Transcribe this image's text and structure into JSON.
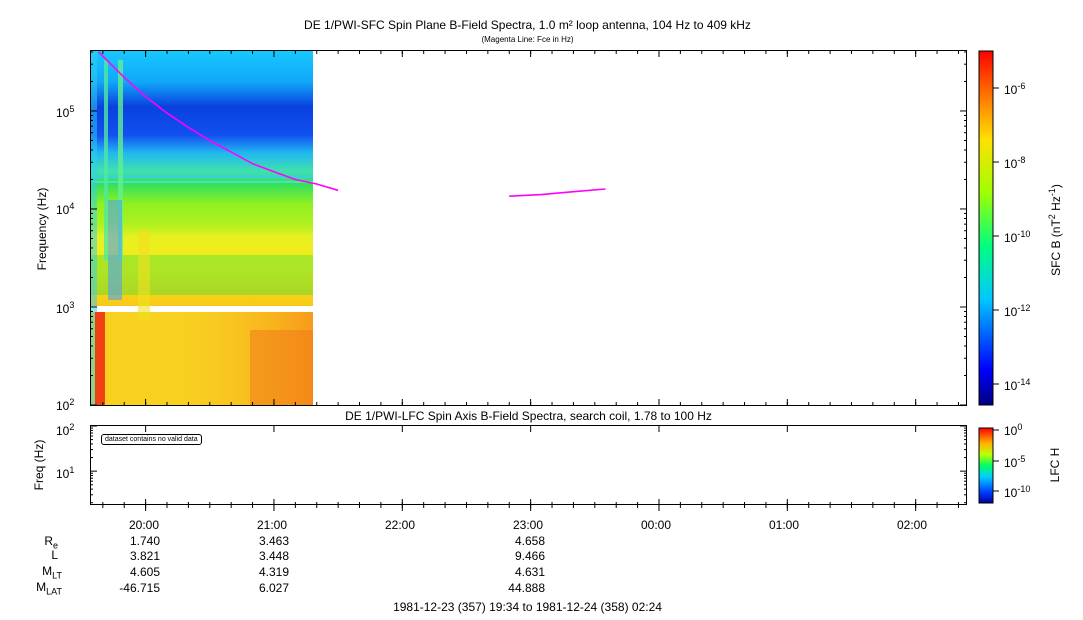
{
  "title": "DE 1/PWI-SFC  Spin Plane B-Field Spectra, 1.0 m² loop antenna, 104 Hz to 409 kHz",
  "subtitle": "(Magenta Line: Fce in Hz)",
  "lower_title": "DE 1/PWI-LFC  Spin Axis B-Field Spectra, search coil, 1.78 to 100 Hz",
  "no_data_message": "dataset contains no valid data",
  "time_range_label": "1981-12-23 (357) 19:34 to 1981-12-24 (358) 02:24",
  "colors": {
    "fce_line": "#ff00ff",
    "axis": "#000000",
    "background": "#ffffff"
  },
  "ephemeris": {
    "rows": [
      {
        "label": "R",
        "sub": "e",
        "values": [
          "1.740",
          "3.463",
          "4.658"
        ]
      },
      {
        "label": "L",
        "sub": "",
        "values": [
          "3.821",
          "3.448",
          "9.466"
        ]
      },
      {
        "label": "M",
        "sub": "LT",
        "values": [
          "4.605",
          "4.319",
          "4.631"
        ]
      },
      {
        "label": "M",
        "sub": "LAT",
        "values": [
          "-46.715",
          "6.027",
          "44.888"
        ]
      }
    ],
    "value_times": [
      "20:00",
      "21:00",
      "23:00"
    ]
  },
  "chart_data": [
    {
      "type": "heatmap",
      "title": "DE 1/PWI-SFC  Spin Plane B-Field Spectra, 1.0 m² loop antenna, 104 Hz to 409 kHz",
      "ylabel": "Frequency (Hz)",
      "yscale": "log",
      "ylim": [
        100,
        409000
      ],
      "yticks": [
        {
          "value": 100,
          "base": "10",
          "exp": "2"
        },
        {
          "value": 1000,
          "base": "10",
          "exp": "3"
        },
        {
          "value": 10000,
          "base": "10",
          "exp": "4"
        },
        {
          "value": 100000,
          "base": "10",
          "exp": "5"
        }
      ],
      "xlim": [
        "19:34",
        "02:24"
      ],
      "xticks": [
        "20:00",
        "21:00",
        "22:00",
        "23:00",
        "00:00",
        "01:00",
        "02:00"
      ],
      "data_coverage": [
        "19:34",
        "21:18"
      ],
      "colorbar": {
        "label": "SFC B (nT² Hz⁻¹)",
        "label_base": "SFC B (nT",
        "label_exp1": "2",
        "label_mid": " Hz",
        "label_exp2": "-1",
        "label_end": ")",
        "scale": "log",
        "range": [
          1e-15,
          1e-05
        ],
        "ticks": [
          {
            "base": "10",
            "exp": "-6"
          },
          {
            "base": "10",
            "exp": "-8"
          },
          {
            "base": "10",
            "exp": "-10"
          },
          {
            "base": "10",
            "exp": "-12"
          },
          {
            "base": "10",
            "exp": "-14"
          }
        ]
      },
      "series": [
        {
          "name": "Fce in Hz",
          "color": "#ff00ff",
          "points": [
            [
              "19:38",
              400000
            ],
            [
              "19:50",
              220000
            ],
            [
              "20:00",
              140000
            ],
            [
              "20:10",
              95000
            ],
            [
              "20:20",
              68000
            ],
            [
              "20:30",
              50000
            ],
            [
              "20:40",
              38000
            ],
            [
              "20:50",
              29000
            ],
            [
              "21:00",
              24000
            ],
            [
              "21:10",
              20000
            ],
            [
              "21:20",
              18000
            ],
            [
              "21:30",
              15500
            ]
          ]
        },
        {
          "name": "Fce in Hz",
          "color": "#ff00ff",
          "points": [
            [
              "22:50",
              13500
            ],
            [
              "23:05",
              14000
            ],
            [
              "23:20",
              15000
            ],
            [
              "23:35",
              16000
            ]
          ]
        }
      ]
    },
    {
      "type": "heatmap",
      "title": "DE 1/PWI-LFC  Spin Axis B-Field Spectra, search coil, 1.78 to 100 Hz",
      "ylabel": "Freq (Hz)",
      "yscale": "log",
      "ylim": [
        1.78,
        100
      ],
      "yticks": [
        {
          "value": 10,
          "base": "10",
          "exp": "1"
        },
        {
          "value": 100,
          "base": "10",
          "exp": "2"
        }
      ],
      "xlim": [
        "19:34",
        "02:24"
      ],
      "xticks": [
        "20:00",
        "21:00",
        "22:00",
        "23:00",
        "00:00",
        "01:00",
        "02:00"
      ],
      "colorbar": {
        "label": "LFC H",
        "scale": "log",
        "range": [
          1e-12,
          1
        ],
        "ticks": [
          {
            "base": "10",
            "exp": "0"
          },
          {
            "base": "10",
            "exp": "-5"
          },
          {
            "base": "10",
            "exp": "-10"
          }
        ]
      }
    }
  ]
}
